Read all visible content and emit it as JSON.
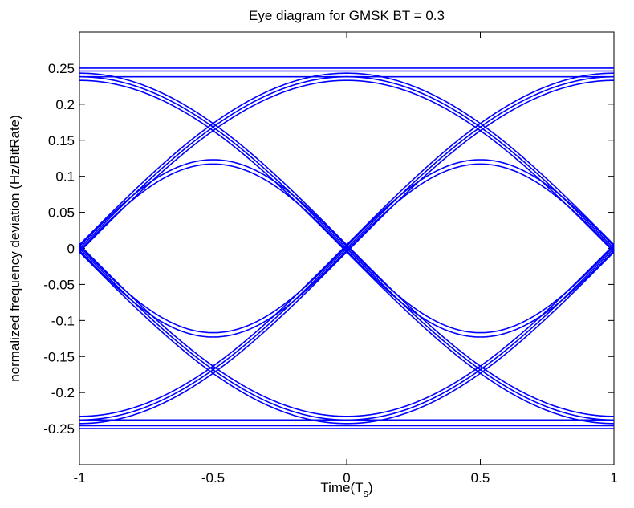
{
  "chart_data": {
    "type": "line",
    "title": "Eye diagram for GMSK BT = 0.3",
    "xlabel": "Time(T",
    "xlabel_sub": "s",
    "xlabel_close": ")",
    "ylabel": "normalized frequency deviation (Hz/BitRate)",
    "xlim": [
      -1,
      1
    ],
    "ylim": [
      -0.3,
      0.3
    ],
    "xticks": [
      -1,
      -0.5,
      0,
      0.5,
      1
    ],
    "xtick_labels": [
      "-1",
      "-0.5",
      "0",
      "0.5",
      "1"
    ],
    "yticks": [
      0.25,
      0.2,
      0.15,
      0.1,
      0.05,
      0,
      -0.05,
      -0.1,
      -0.15,
      -0.2,
      -0.25
    ],
    "ytick_labels": [
      "0.25",
      "0.2",
      "0.15",
      "0.1",
      "0.05",
      "0",
      "-0.05",
      "-0.1",
      "-0.15",
      "-0.2",
      "-0.25"
    ],
    "grid": false,
    "line_color": "#0000ff",
    "eye_levels": {
      "outer": 0.25,
      "transition": 0.238,
      "inner": 0.12
    }
  }
}
